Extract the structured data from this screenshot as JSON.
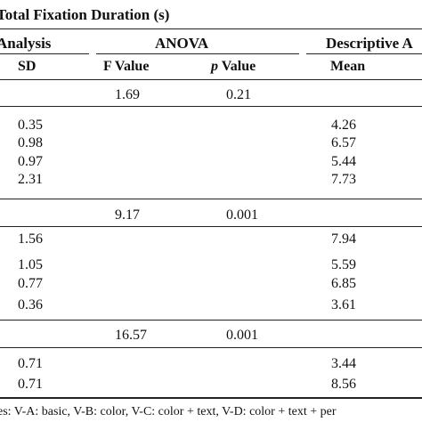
{
  "header": {
    "group_title": "Total Fixation Duration (s)",
    "analysis_label": "Analysis",
    "anova_label": "ANOVA",
    "descriptive_label": "Descriptive A",
    "col_sd": "SD",
    "col_f_value": "F Value",
    "col_p_italic": "p",
    "col_p_rest": " Value",
    "col_mean": "Mean"
  },
  "groups": [
    {
      "anova": {
        "f": "1.69",
        "p": "0.21"
      },
      "rows": [
        {
          "sd": "0.35",
          "mean": "4.26"
        },
        {
          "sd": "0.98",
          "mean": "6.57"
        },
        {
          "sd": "0.97",
          "mean": "5.44"
        },
        {
          "sd": "2.31",
          "mean": "7.73"
        }
      ]
    },
    {
      "anova": {
        "f": "9.17",
        "p": "0.001"
      },
      "rows": [
        {
          "sd": "1.56",
          "mean": "7.94"
        },
        {
          "sd": "1.05",
          "mean": "5.59"
        },
        {
          "sd": "0.77",
          "mean": "6.85"
        },
        {
          "sd": "0.36",
          "mean": "3.61"
        }
      ]
    },
    {
      "anova": {
        "f": "16.57",
        "p": "0.001"
      },
      "rows": [
        {
          "sd": "0.71",
          "mean": "3.44"
        },
        {
          "sd": "0.71",
          "mean": "8.56"
        }
      ]
    }
  ],
  "footnote": "es: V-A: basic, V-B: color, V-C: color + text, V-D: color + text + per"
}
